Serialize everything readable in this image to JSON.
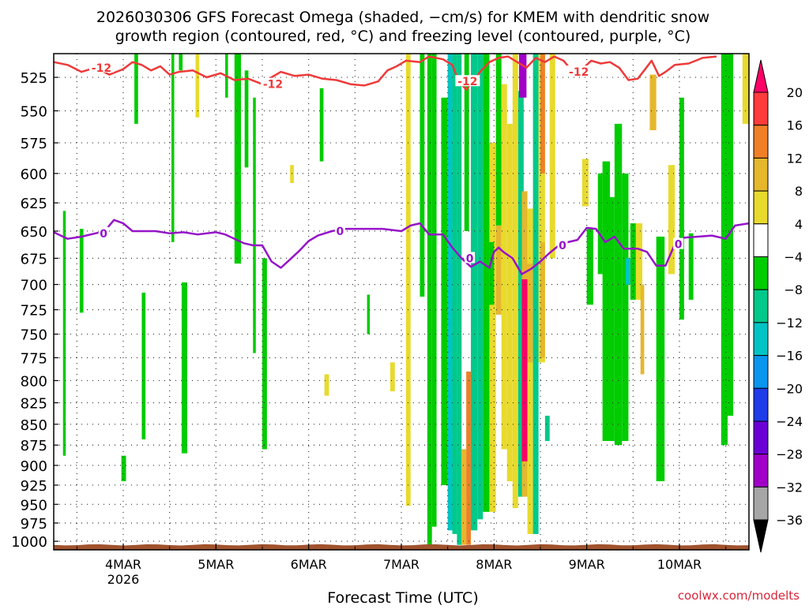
{
  "chart_data": {
    "type": "heatmap",
    "title_line1": "2026030306 GFS Forecast Omega (shaded, −cm/s) for KMEM with dendritic snow",
    "title_line2": "growth region (contoured, red, °C) and freezing level (contoured, purple, °C)",
    "xlabel": "Forecast Time (UTC)",
    "credit": "coolwx.com/modelts",
    "x_unit": "days since 2026-03-03 00Z",
    "xlim": [
      3.25,
      10.75
    ],
    "x_ticks": [
      {
        "value": 4,
        "label": "4MAR",
        "sublabel": "2026"
      },
      {
        "value": 5,
        "label": "5MAR",
        "sublabel": ""
      },
      {
        "value": 6,
        "label": "6MAR",
        "sublabel": ""
      },
      {
        "value": 7,
        "label": "7MAR",
        "sublabel": ""
      },
      {
        "value": 8,
        "label": "8MAR",
        "sublabel": ""
      },
      {
        "value": 9,
        "label": "9MAR",
        "sublabel": ""
      },
      {
        "value": 10,
        "label": "10MAR",
        "sublabel": ""
      }
    ],
    "y_unit": "hPa (log-pressure axis)",
    "ylim": [
      1012,
      508
    ],
    "y_ticks": [
      525,
      550,
      575,
      600,
      625,
      650,
      675,
      700,
      725,
      750,
      775,
      800,
      825,
      850,
      875,
      900,
      925,
      950,
      975,
      1000
    ],
    "colorbar": {
      "labels": [
        "20",
        "16",
        "12",
        "8",
        "4",
        "−4",
        "−8",
        "−12",
        "−16",
        "−20",
        "−24",
        "−28",
        "−32",
        "−36"
      ],
      "levels": [
        20,
        16,
        12,
        8,
        4,
        -4,
        -8,
        -12,
        -16,
        -20,
        -24,
        -28,
        -32,
        -36
      ],
      "colors": [
        "#ff0066",
        "#ff3b3b",
        "#f07f28",
        "#e5b72d",
        "#e8da2d",
        "#ffffff",
        "#00cc00",
        "#00c98a",
        "#00c4c4",
        "#0a96ee",
        "#1e3de8",
        "#6a00d6",
        "#a100c8",
        "#a6a6a6",
        "#000000"
      ]
    },
    "contours": [
      {
        "name": "dendritic growth -12C",
        "color": "#ee3a3a",
        "label": "-12",
        "label_at": [
          3.65,
          5.5,
          7.6,
          8.8
        ],
        "points": [
          [
            3.25,
            514
          ],
          [
            3.4,
            516
          ],
          [
            3.55,
            521
          ],
          [
            3.7,
            518
          ],
          [
            3.85,
            523
          ],
          [
            4.0,
            519
          ],
          [
            4.1,
            514
          ],
          [
            4.2,
            516
          ],
          [
            4.3,
            520
          ],
          [
            4.4,
            517
          ],
          [
            4.5,
            523
          ],
          [
            4.6,
            521
          ],
          [
            4.75,
            520
          ],
          [
            4.9,
            525
          ],
          [
            5.05,
            522
          ],
          [
            5.2,
            527
          ],
          [
            5.35,
            526
          ],
          [
            5.5,
            530
          ],
          [
            5.6,
            525
          ],
          [
            5.7,
            521
          ],
          [
            5.85,
            524
          ],
          [
            6.0,
            523
          ],
          [
            6.15,
            526
          ],
          [
            6.3,
            527
          ],
          [
            6.45,
            530
          ],
          [
            6.6,
            531
          ],
          [
            6.75,
            528
          ],
          [
            6.85,
            520
          ],
          [
            6.95,
            517
          ],
          [
            7.05,
            513
          ],
          [
            7.2,
            514
          ],
          [
            7.3,
            510
          ],
          [
            7.45,
            512
          ],
          [
            7.55,
            516
          ],
          [
            7.62,
            528
          ],
          [
            7.7,
            534
          ],
          [
            7.78,
            527
          ],
          [
            7.85,
            521
          ],
          [
            7.95,
            514
          ],
          [
            8.05,
            511
          ],
          [
            8.15,
            510
          ],
          [
            8.25,
            514
          ],
          [
            8.35,
            518
          ],
          [
            8.45,
            511
          ],
          [
            8.55,
            514
          ],
          [
            8.65,
            510
          ],
          [
            8.75,
            513
          ],
          [
            8.85,
            521
          ],
          [
            8.95,
            519
          ],
          [
            9.05,
            513
          ],
          [
            9.15,
            515
          ],
          [
            9.25,
            514
          ],
          [
            9.35,
            518
          ],
          [
            9.45,
            527
          ],
          [
            9.55,
            526
          ],
          [
            9.62,
            520
          ],
          [
            9.7,
            513
          ],
          [
            9.78,
            524
          ],
          [
            9.85,
            521
          ],
          [
            9.95,
            516
          ],
          [
            10.1,
            515
          ],
          [
            10.25,
            511
          ],
          [
            10.4,
            510
          ]
        ]
      },
      {
        "name": "freezing level 0C",
        "color": "#9614c8",
        "label": "0",
        "label_at": [
          3.75,
          6.3,
          7.7,
          8.7,
          9.95
        ],
        "points": [
          [
            3.25,
            651
          ],
          [
            3.4,
            657
          ],
          [
            3.55,
            655
          ],
          [
            3.7,
            652
          ],
          [
            3.8,
            650
          ],
          [
            3.9,
            640
          ],
          [
            4.0,
            643
          ],
          [
            4.1,
            650
          ],
          [
            4.2,
            650
          ],
          [
            4.35,
            650
          ],
          [
            4.5,
            652
          ],
          [
            4.65,
            651
          ],
          [
            4.8,
            653
          ],
          [
            5.0,
            651
          ],
          [
            5.1,
            653
          ],
          [
            5.2,
            657
          ],
          [
            5.3,
            661
          ],
          [
            5.4,
            663
          ],
          [
            5.5,
            663
          ],
          [
            5.6,
            678
          ],
          [
            5.7,
            684
          ],
          [
            5.8,
            676
          ],
          [
            5.9,
            668
          ],
          [
            6.0,
            659
          ],
          [
            6.1,
            654
          ],
          [
            6.25,
            650
          ],
          [
            6.4,
            648
          ],
          [
            6.6,
            648
          ],
          [
            6.8,
            648
          ],
          [
            7.0,
            650
          ],
          [
            7.1,
            645
          ],
          [
            7.2,
            643
          ],
          [
            7.3,
            653
          ],
          [
            7.45,
            653
          ],
          [
            7.55,
            665
          ],
          [
            7.65,
            675
          ],
          [
            7.75,
            683
          ],
          [
            7.85,
            678
          ],
          [
            7.95,
            684
          ],
          [
            8.0,
            669
          ],
          [
            8.05,
            665
          ],
          [
            8.1,
            669
          ],
          [
            8.2,
            675
          ],
          [
            8.3,
            690
          ],
          [
            8.4,
            685
          ],
          [
            8.5,
            678
          ],
          [
            8.6,
            670
          ],
          [
            8.7,
            663
          ],
          [
            8.8,
            660
          ],
          [
            8.9,
            658
          ],
          [
            9.0,
            647
          ],
          [
            9.1,
            648
          ],
          [
            9.2,
            660
          ],
          [
            9.3,
            655
          ],
          [
            9.4,
            666
          ],
          [
            9.55,
            666
          ],
          [
            9.65,
            669
          ],
          [
            9.75,
            682
          ],
          [
            9.85,
            682
          ],
          [
            9.95,
            662
          ],
          [
            10.05,
            656
          ],
          [
            10.2,
            655
          ],
          [
            10.35,
            654
          ],
          [
            10.5,
            657
          ],
          [
            10.6,
            645
          ],
          [
            10.75,
            643
          ]
        ]
      }
    ],
    "omega_cells": [
      {
        "x0": 3.35,
        "x1": 3.38,
        "p0": 632,
        "p1": 888,
        "v": -6
      },
      {
        "x0": 3.53,
        "x1": 3.57,
        "p0": 648,
        "p1": 728,
        "v": -6
      },
      {
        "x0": 3.98,
        "x1": 4.03,
        "p0": 888,
        "p1": 920,
        "v": -6
      },
      {
        "x0": 4.12,
        "x1": 4.16,
        "p0": 508,
        "p1": 560,
        "v": -6
      },
      {
        "x0": 4.2,
        "x1": 4.24,
        "p0": 708,
        "p1": 868,
        "v": -6
      },
      {
        "x0": 4.52,
        "x1": 4.55,
        "p0": 508,
        "p1": 660,
        "v": -6
      },
      {
        "x0": 4.6,
        "x1": 4.64,
        "p0": 508,
        "p1": 520,
        "v": -6
      },
      {
        "x0": 4.63,
        "x1": 4.69,
        "p0": 698,
        "p1": 885,
        "v": -6
      },
      {
        "x0": 4.78,
        "x1": 4.82,
        "p0": 508,
        "p1": 555,
        "v": 6
      },
      {
        "x0": 5.1,
        "x1": 5.13,
        "p0": 508,
        "p1": 540,
        "v": -6
      },
      {
        "x0": 5.2,
        "x1": 5.27,
        "p0": 508,
        "p1": 680,
        "v": -6
      },
      {
        "x0": 5.31,
        "x1": 5.35,
        "p0": 520,
        "p1": 595,
        "v": -6
      },
      {
        "x0": 5.4,
        "x1": 5.43,
        "p0": 540,
        "p1": 770,
        "v": -6
      },
      {
        "x0": 5.5,
        "x1": 5.55,
        "p0": 675,
        "p1": 880,
        "v": -6
      },
      {
        "x0": 5.8,
        "x1": 5.84,
        "p0": 593,
        "p1": 608,
        "v": 6
      },
      {
        "x0": 6.12,
        "x1": 6.16,
        "p0": 533,
        "p1": 590,
        "v": -6
      },
      {
        "x0": 6.17,
        "x1": 6.22,
        "p0": 793,
        "p1": 817,
        "v": 6
      },
      {
        "x0": 6.63,
        "x1": 6.66,
        "p0": 710,
        "p1": 750,
        "v": -6
      },
      {
        "x0": 6.88,
        "x1": 6.93,
        "p0": 780,
        "p1": 812,
        "v": 6
      },
      {
        "x0": 7.05,
        "x1": 7.1,
        "p0": 508,
        "p1": 952,
        "v": 6
      },
      {
        "x0": 7.2,
        "x1": 7.25,
        "p0": 508,
        "p1": 712,
        "v": -6
      },
      {
        "x0": 7.28,
        "x1": 7.33,
        "p0": 508,
        "p1": 1005,
        "v": -8
      },
      {
        "x0": 7.33,
        "x1": 7.38,
        "p0": 508,
        "p1": 980,
        "v": -6
      },
      {
        "x0": 7.43,
        "x1": 7.5,
        "p0": 540,
        "p1": 925,
        "v": -8
      },
      {
        "x0": 7.5,
        "x1": 7.55,
        "p0": 508,
        "p1": 985,
        "v": -14
      },
      {
        "x0": 7.55,
        "x1": 7.6,
        "p0": 508,
        "p1": 990,
        "v": -10
      },
      {
        "x0": 7.6,
        "x1": 7.65,
        "p0": 508,
        "p1": 1005,
        "v": -12
      },
      {
        "x0": 7.65,
        "x1": 7.7,
        "p0": 880,
        "p1": 1005,
        "v": 10
      },
      {
        "x0": 7.7,
        "x1": 7.75,
        "p0": 790,
        "p1": 1005,
        "v": 14
      },
      {
        "x0": 7.68,
        "x1": 7.73,
        "p0": 508,
        "p1": 650,
        "v": -6
      },
      {
        "x0": 7.75,
        "x1": 7.82,
        "p0": 508,
        "p1": 985,
        "v": -10
      },
      {
        "x0": 7.82,
        "x1": 7.88,
        "p0": 508,
        "p1": 970,
        "v": -12
      },
      {
        "x0": 7.88,
        "x1": 7.95,
        "p0": 508,
        "p1": 960,
        "v": -6
      },
      {
        "x0": 7.95,
        "x1": 8.02,
        "p0": 575,
        "p1": 960,
        "v": 6
      },
      {
        "x0": 7.95,
        "x1": 8.0,
        "p0": 660,
        "p1": 720,
        "v": -8
      },
      {
        "x0": 8.02,
        "x1": 8.08,
        "p0": 508,
        "p1": 645,
        "v": -6
      },
      {
        "x0": 8.02,
        "x1": 8.08,
        "p0": 645,
        "p1": 730,
        "v": 10
      },
      {
        "x0": 8.08,
        "x1": 8.14,
        "p0": 530,
        "p1": 880,
        "v": 6
      },
      {
        "x0": 8.14,
        "x1": 8.2,
        "p0": 560,
        "p1": 920,
        "v": 6
      },
      {
        "x0": 8.2,
        "x1": 8.26,
        "p0": 508,
        "p1": 955,
        "v": 6
      },
      {
        "x0": 8.26,
        "x1": 8.32,
        "p0": 535,
        "p1": 940,
        "v": -10
      },
      {
        "x0": 8.3,
        "x1": 8.36,
        "p0": 615,
        "p1": 940,
        "v": 10
      },
      {
        "x0": 8.3,
        "x1": 8.36,
        "p0": 695,
        "p1": 895,
        "v": 20
      },
      {
        "x0": 8.27,
        "x1": 8.35,
        "p0": 508,
        "p1": 540,
        "v": -30
      },
      {
        "x0": 8.36,
        "x1": 8.42,
        "p0": 630,
        "p1": 990,
        "v": 6
      },
      {
        "x0": 8.36,
        "x1": 8.42,
        "p0": 680,
        "p1": 780,
        "v": 10
      },
      {
        "x0": 8.42,
        "x1": 8.48,
        "p0": 508,
        "p1": 990,
        "v": -10
      },
      {
        "x0": 8.48,
        "x1": 8.55,
        "p0": 508,
        "p1": 780,
        "v": 6
      },
      {
        "x0": 8.5,
        "x1": 8.55,
        "p0": 508,
        "p1": 600,
        "v": 14
      },
      {
        "x0": 8.5,
        "x1": 8.55,
        "p0": 660,
        "p1": 775,
        "v": 10
      },
      {
        "x0": 8.55,
        "x1": 8.6,
        "p0": 840,
        "p1": 870,
        "v": -10
      },
      {
        "x0": 8.6,
        "x1": 8.66,
        "p0": 508,
        "p1": 675,
        "v": 6
      },
      {
        "x0": 8.95,
        "x1": 9.02,
        "p0": 588,
        "p1": 628,
        "v": 6
      },
      {
        "x0": 9.0,
        "x1": 9.07,
        "p0": 648,
        "p1": 720,
        "v": -6
      },
      {
        "x0": 9.12,
        "x1": 9.17,
        "p0": 600,
        "p1": 690,
        "v": -6
      },
      {
        "x0": 9.17,
        "x1": 9.25,
        "p0": 590,
        "p1": 870,
        "v": -6
      },
      {
        "x0": 9.25,
        "x1": 9.3,
        "p0": 620,
        "p1": 870,
        "v": -8
      },
      {
        "x0": 9.3,
        "x1": 9.38,
        "p0": 560,
        "p1": 875,
        "v": -6
      },
      {
        "x0": 9.38,
        "x1": 9.45,
        "p0": 600,
        "p1": 870,
        "v": -6
      },
      {
        "x0": 9.42,
        "x1": 9.47,
        "p0": 675,
        "p1": 700,
        "v": -14
      },
      {
        "x0": 9.47,
        "x1": 9.53,
        "p0": 643,
        "p1": 715,
        "v": -6
      },
      {
        "x0": 9.53,
        "x1": 9.6,
        "p0": 643,
        "p1": 715,
        "v": 6
      },
      {
        "x0": 9.58,
        "x1": 9.62,
        "p0": 700,
        "p1": 793,
        "v": 10
      },
      {
        "x0": 9.68,
        "x1": 9.75,
        "p0": 523,
        "p1": 565,
        "v": 10
      },
      {
        "x0": 9.75,
        "x1": 9.84,
        "p0": 655,
        "p1": 920,
        "v": -6
      },
      {
        "x0": 9.88,
        "x1": 9.95,
        "p0": 593,
        "p1": 690,
        "v": 6
      },
      {
        "x0": 10.0,
        "x1": 10.05,
        "p0": 540,
        "p1": 735,
        "v": -6
      },
      {
        "x0": 10.1,
        "x1": 10.15,
        "p0": 652,
        "p1": 715,
        "v": -6
      },
      {
        "x0": 10.45,
        "x1": 10.52,
        "p0": 508,
        "p1": 875,
        "v": -8
      },
      {
        "x0": 10.52,
        "x1": 10.58,
        "p0": 508,
        "p1": 840,
        "v": -6
      },
      {
        "x0": 10.68,
        "x1": 10.75,
        "p0": 508,
        "p1": 560,
        "v": 6
      }
    ],
    "terrain": {
      "p_top": 1005,
      "p_bottom": 1012,
      "color": "#a0522d"
    }
  }
}
